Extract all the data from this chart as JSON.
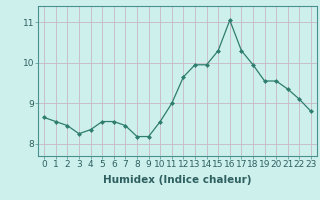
{
  "x": [
    0,
    1,
    2,
    3,
    4,
    5,
    6,
    7,
    8,
    9,
    10,
    11,
    12,
    13,
    14,
    15,
    16,
    17,
    18,
    19,
    20,
    21,
    22,
    23
  ],
  "y": [
    8.65,
    8.55,
    8.45,
    8.25,
    8.35,
    8.55,
    8.55,
    8.45,
    8.18,
    8.18,
    8.55,
    9.0,
    9.65,
    9.95,
    9.95,
    10.3,
    11.05,
    10.3,
    9.95,
    9.55,
    9.55,
    9.35,
    9.1,
    8.8
  ],
  "line_color": "#2e7d6e",
  "marker": "D",
  "marker_size": 2.0,
  "background_color": "#cef0ec",
  "grid_color": "#c8b8c8",
  "xlabel": "Humidex (Indice chaleur)",
  "ylim": [
    7.7,
    11.4
  ],
  "xlim": [
    -0.5,
    23.5
  ],
  "yticks": [
    8,
    9,
    10,
    11
  ],
  "xticks": [
    0,
    1,
    2,
    3,
    4,
    5,
    6,
    7,
    8,
    9,
    10,
    11,
    12,
    13,
    14,
    15,
    16,
    17,
    18,
    19,
    20,
    21,
    22,
    23
  ],
  "tick_fontsize": 6.5,
  "label_fontsize": 7.5
}
